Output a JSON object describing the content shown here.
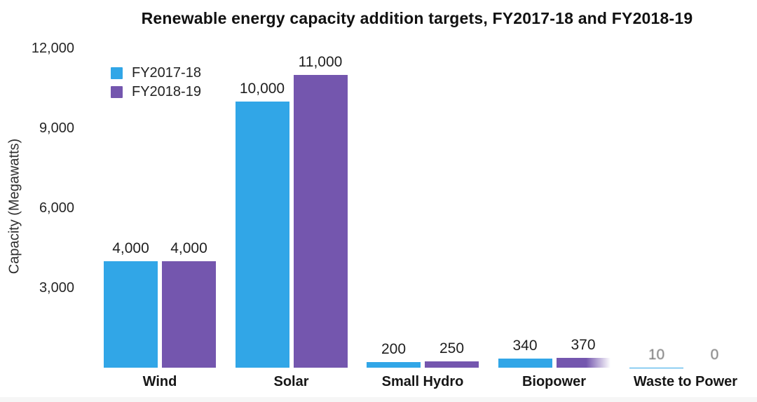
{
  "chart_data": {
    "type": "bar",
    "title": "Renewable energy capacity addition targets, FY2017-18 and FY2018-19",
    "xlabel": "",
    "ylabel": "Capacity (Megawatts)",
    "categories": [
      "Wind",
      "Solar",
      "Small Hydro",
      "Biopower",
      "Waste to Power"
    ],
    "series": [
      {
        "name": "FY2017-18",
        "color": "#31a6e7",
        "values": [
          4000,
          10000,
          200,
          340,
          10
        ],
        "value_labels": [
          "4,000",
          "10,000",
          "200",
          "340",
          "10"
        ]
      },
      {
        "name": "FY2018-19",
        "color": "#7456ae",
        "values": [
          4000,
          11000,
          250,
          370,
          0
        ],
        "value_labels": [
          "4,000",
          "11,000",
          "250",
          "370",
          "0"
        ]
      }
    ],
    "ylim": [
      0,
      12000
    ],
    "yticks": [
      3000,
      6000,
      9000,
      12000
    ],
    "ytick_labels": [
      "3,000",
      "6,000",
      "9,000",
      "12,000"
    ],
    "grid": false,
    "legend_position": "top-left",
    "background": "#ffffff"
  }
}
